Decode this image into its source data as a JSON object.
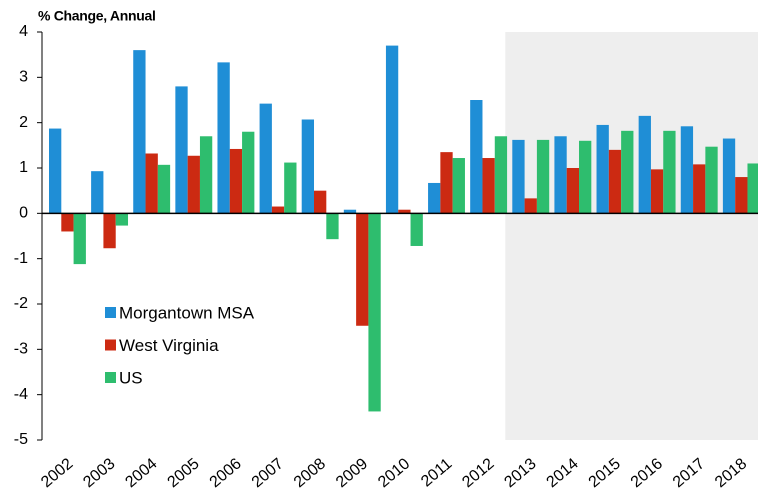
{
  "chart_data": {
    "type": "bar",
    "y_label": "% Change, Annual",
    "categories": [
      "2002",
      "2003",
      "2004",
      "2005",
      "2006",
      "2007",
      "2008",
      "2009",
      "2010",
      "2011",
      "2012",
      "2013",
      "2014",
      "2015",
      "2016",
      "2017",
      "2018"
    ],
    "series": [
      {
        "name": "Morgantown MSA",
        "color": "#1f8ed6",
        "values": [
          1.87,
          0.93,
          3.6,
          2.8,
          3.33,
          2.42,
          2.07,
          0.08,
          3.7,
          0.67,
          2.5,
          1.62,
          1.7,
          1.95,
          2.15,
          1.92,
          1.65
        ]
      },
      {
        "name": "West Virginia",
        "color": "#cc2a12",
        "values": [
          -0.4,
          -0.77,
          1.32,
          1.27,
          1.42,
          0.15,
          0.5,
          -2.48,
          0.08,
          1.35,
          1.22,
          0.33,
          1.0,
          1.4,
          0.97,
          1.08,
          0.8
        ]
      },
      {
        "name": "US",
        "color": "#2ebd6e",
        "values": [
          -1.12,
          -0.27,
          1.07,
          1.7,
          1.8,
          1.12,
          -0.57,
          -4.37,
          -0.72,
          1.22,
          1.7,
          1.62,
          1.6,
          1.82,
          1.82,
          1.47,
          1.1
        ]
      }
    ],
    "ylim": [
      -5,
      4
    ],
    "yticks": [
      -5,
      -4,
      -3,
      -2,
      -1,
      0,
      1,
      2,
      3,
      4
    ],
    "shade_from": "2013",
    "shade_color": "#eeeeee",
    "legend": "lower-left"
  }
}
